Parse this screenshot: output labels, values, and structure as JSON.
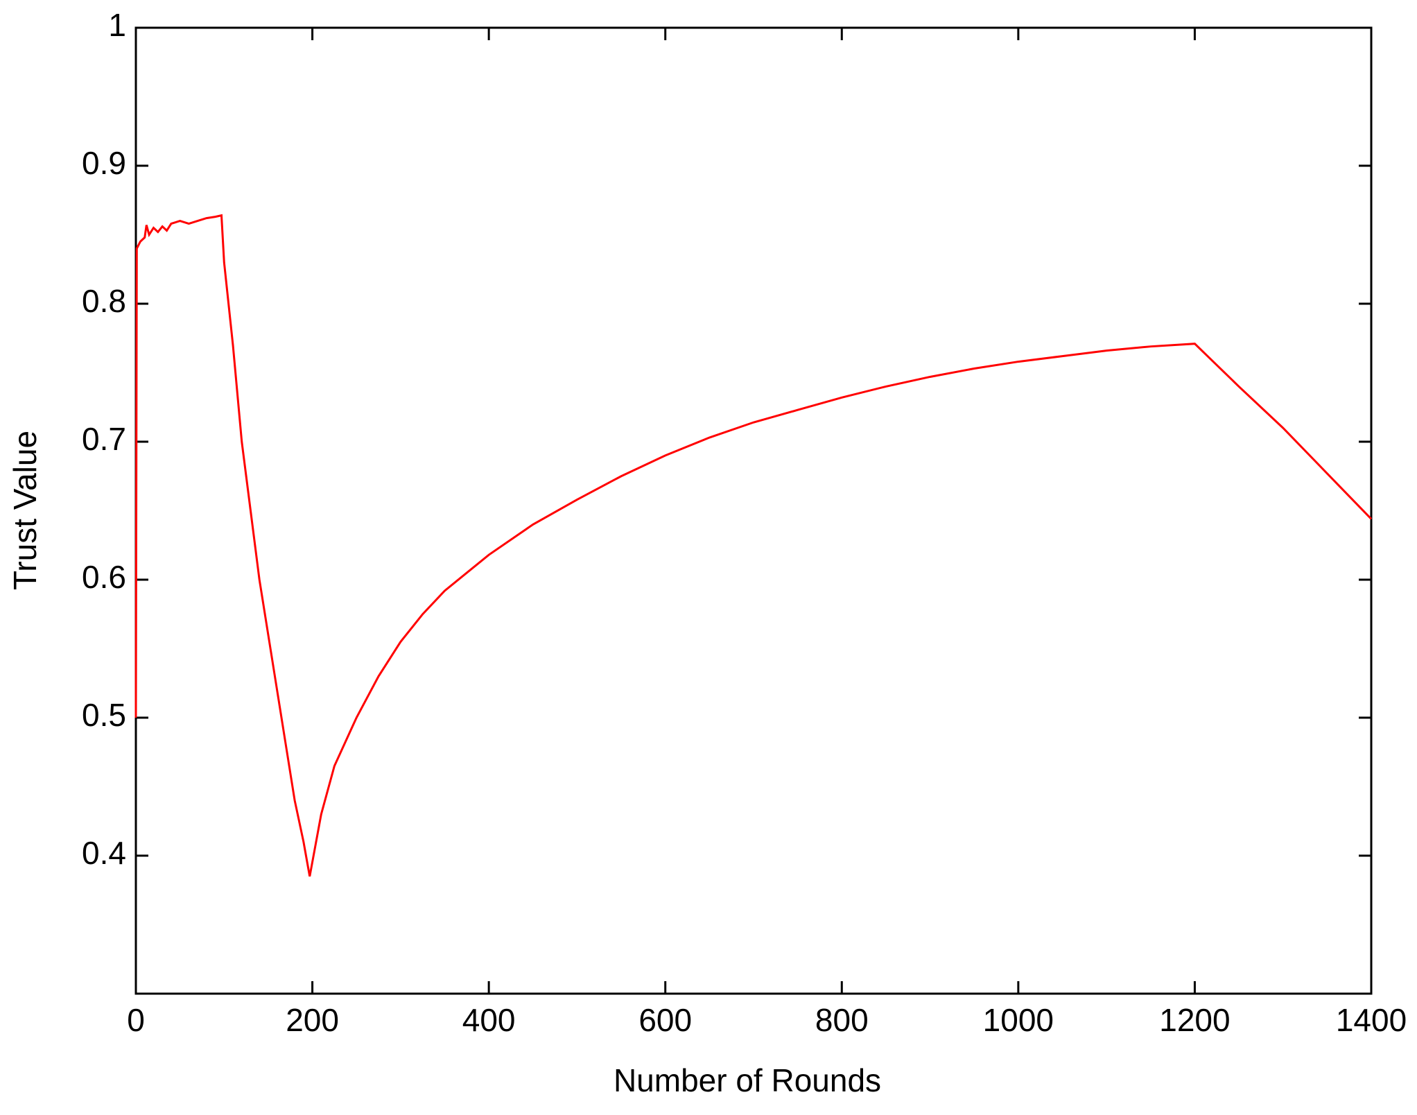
{
  "chart_data": {
    "type": "line",
    "xlabel": "Number of Rounds",
    "ylabel": "Trust Value",
    "x": [
      0,
      1,
      5,
      10,
      12,
      15,
      20,
      25,
      30,
      35,
      40,
      50,
      60,
      70,
      80,
      90,
      97,
      100,
      110,
      120,
      130,
      140,
      150,
      160,
      170,
      180,
      190,
      197,
      210,
      225,
      250,
      275,
      300,
      325,
      350,
      375,
      400,
      450,
      500,
      550,
      600,
      650,
      700,
      750,
      800,
      850,
      900,
      950,
      1000,
      1050,
      1100,
      1150,
      1200,
      1250,
      1300,
      1350,
      1400
    ],
    "series": [
      {
        "color": "#ff0000",
        "values": [
          0.5,
          0.84,
          0.845,
          0.848,
          0.857,
          0.85,
          0.855,
          0.852,
          0.856,
          0.853,
          0.858,
          0.86,
          0.858,
          0.86,
          0.862,
          0.863,
          0.864,
          0.83,
          0.77,
          0.7,
          0.65,
          0.6,
          0.56,
          0.52,
          0.48,
          0.44,
          0.41,
          0.385,
          0.43,
          0.465,
          0.5,
          0.53,
          0.555,
          0.575,
          0.592,
          0.605,
          0.618,
          0.64,
          0.658,
          0.675,
          0.69,
          0.703,
          0.714,
          0.723,
          0.732,
          0.74,
          0.747,
          0.753,
          0.758,
          0.762,
          0.766,
          0.769,
          0.771,
          0.74,
          0.71,
          0.677,
          0.644
        ]
      }
    ],
    "xlim": [
      0,
      1400
    ],
    "xticks": [
      0,
      200,
      400,
      600,
      800,
      1000,
      1200,
      1400
    ],
    "ylim": [
      0.3,
      1
    ],
    "yticks": [
      0.4,
      0.5,
      0.6,
      0.7,
      0.8,
      0.9,
      1
    ],
    "grid": false
  }
}
